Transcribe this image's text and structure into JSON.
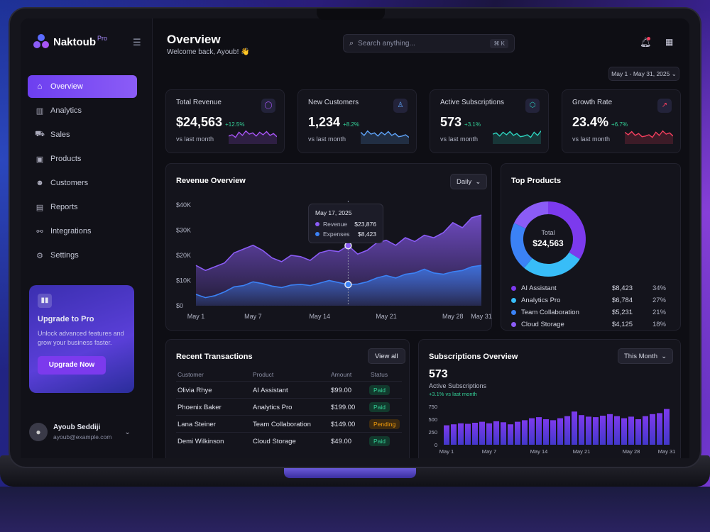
{
  "brand": {
    "name": "Naktoub",
    "badge": "Pro"
  },
  "nav": [
    {
      "label": "Overview",
      "icon": "home-icon",
      "active": true
    },
    {
      "label": "Analytics",
      "icon": "bar-chart-icon"
    },
    {
      "label": "Sales",
      "icon": "cart-icon"
    },
    {
      "label": "Products",
      "icon": "box-icon"
    },
    {
      "label": "Customers",
      "icon": "users-icon"
    },
    {
      "label": "Reports",
      "icon": "report-icon"
    },
    {
      "label": "Integrations",
      "icon": "integrations-icon"
    },
    {
      "label": "Settings",
      "icon": "gear-icon"
    }
  ],
  "upgrade": {
    "title": "Upgrade to Pro",
    "text": "Unlock advanced features and grow your business faster.",
    "button": "Upgrade Now"
  },
  "user": {
    "name": "Ayoub Seddiji",
    "email": "ayoub@example.com"
  },
  "header": {
    "title": "Overview",
    "subtitle": "Welcome back, Ayoub! 👋",
    "search_placeholder": "Search anything...",
    "shortcut": "⌘ K",
    "date_range": "May 1 - May 31, 2025"
  },
  "kpis": [
    {
      "label": "Total Revenue",
      "value": "$24,563",
      "delta": "+12.5%",
      "vs": "vs last month",
      "color": "#a855f7",
      "icon": "circle-icon"
    },
    {
      "label": "New Customers",
      "value": "1,234",
      "delta": "+8.2%",
      "vs": "vs last month",
      "color": "#60a5fa",
      "icon": "user-icon"
    },
    {
      "label": "Active Subscriptions",
      "value": "573",
      "delta": "+3.1%",
      "vs": "vs last month",
      "color": "#2dd4bf",
      "icon": "cube-icon"
    },
    {
      "label": "Growth Rate",
      "value": "23.4%",
      "delta": "+6.7%",
      "vs": "vs last month",
      "color": "#f43f5e",
      "icon": "trend-icon"
    }
  ],
  "revenue": {
    "title": "Revenue Overview",
    "period": "Daily",
    "tooltip": {
      "date": "May 17, 2025",
      "revenue_label": "Revenue",
      "revenue_value": "$23,876",
      "expenses_label": "Expenses",
      "expenses_value": "$8,423"
    }
  },
  "chart_data": [
    {
      "type": "area",
      "title": "Revenue Overview",
      "x_ticks": [
        "May 1",
        "May 7",
        "May 14",
        "May 21",
        "May 28",
        "May 31"
      ],
      "y_ticks": [
        "$40K",
        "$30K",
        "$20K",
        "$10K",
        "$0"
      ],
      "ylim": [
        0,
        40000
      ],
      "x": [
        1,
        2,
        3,
        4,
        5,
        6,
        7,
        8,
        9,
        10,
        11,
        12,
        13,
        14,
        15,
        16,
        17,
        18,
        19,
        20,
        21,
        22,
        23,
        24,
        25,
        26,
        27,
        28,
        29,
        30,
        31
      ],
      "series": [
        {
          "name": "Revenue",
          "color": "#8b5cf6",
          "values": [
            16000,
            14000,
            15500,
            17000,
            21000,
            22500,
            24000,
            22000,
            19000,
            17500,
            20000,
            19500,
            18000,
            21000,
            22000,
            21500,
            23876,
            20500,
            22000,
            25000,
            26000,
            24000,
            27000,
            25500,
            28000,
            27000,
            29000,
            33000,
            31000,
            35000,
            36000
          ]
        },
        {
          "name": "Expenses",
          "color": "#3b82f6",
          "values": [
            4500,
            3200,
            4000,
            5500,
            7500,
            8000,
            9500,
            8800,
            7800,
            7200,
            8200,
            8500,
            8000,
            9000,
            10000,
            9200,
            8423,
            8600,
            9500,
            11000,
            12000,
            11000,
            12500,
            13000,
            14500,
            13000,
            12500,
            13500,
            14000,
            15500,
            16000
          ]
        }
      ]
    },
    {
      "type": "pie",
      "title": "Top Products",
      "center_label": "Total",
      "center_value": "$24,563",
      "slices": [
        {
          "name": "AI Assistant",
          "value": "$8,423",
          "pct": 34,
          "color": "#7c3aed"
        },
        {
          "name": "Analytics Pro",
          "value": "$6,784",
          "pct": 27,
          "color": "#38bdf8"
        },
        {
          "name": "Team Collaboration",
          "value": "$5,231",
          "pct": 21,
          "color": "#3b82f6"
        },
        {
          "name": "Cloud Storage",
          "value": "$4,125",
          "pct": 18,
          "color": "#8b5cf6"
        }
      ]
    },
    {
      "type": "bar",
      "title": "Subscriptions Overview",
      "y_ticks": [
        "750",
        "500",
        "250",
        "0"
      ],
      "ylim": [
        0,
        750
      ],
      "x_ticks": [
        "May 1",
        "May 7",
        "May 14",
        "May 21",
        "May 28",
        "May 31"
      ],
      "values": [
        380,
        400,
        420,
        410,
        430,
        450,
        420,
        460,
        440,
        400,
        450,
        480,
        520,
        540,
        500,
        480,
        520,
        560,
        650,
        580,
        550,
        540,
        570,
        600,
        560,
        520,
        550,
        500,
        560,
        600,
        620,
        700
      ]
    }
  ],
  "products": {
    "title": "Top Products"
  },
  "transactions": {
    "title": "Recent Transactions",
    "view_all": "View all",
    "columns": [
      "Customer",
      "Product",
      "Amount",
      "Status"
    ],
    "rows": [
      {
        "customer": "Olivia Rhye",
        "product": "AI Assistant",
        "amount": "$99.00",
        "status": "Paid"
      },
      {
        "customer": "Phoenix Baker",
        "product": "Analytics Pro",
        "amount": "$199.00",
        "status": "Paid"
      },
      {
        "customer": "Lana Steiner",
        "product": "Team Collaboration",
        "amount": "$149.00",
        "status": "Pending"
      },
      {
        "customer": "Demi Wilkinson",
        "product": "Cloud Storage",
        "amount": "$49.00",
        "status": "Paid"
      }
    ]
  },
  "subscriptions": {
    "title": "Subscriptions Overview",
    "period": "This Month",
    "value": "573",
    "label": "Active Subscriptions",
    "delta": "+3.1% vs last month"
  }
}
